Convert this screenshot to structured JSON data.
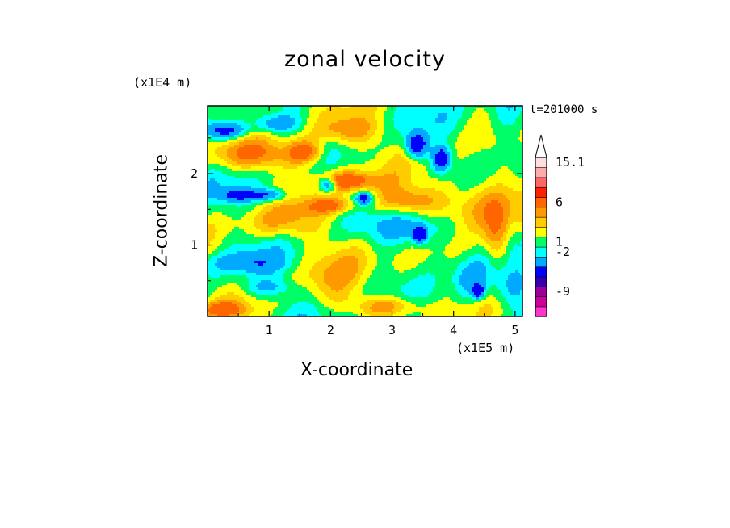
{
  "chart_data": {
    "type": "heatmap",
    "title": "zonal velocity",
    "xlabel": "X-coordinate",
    "ylabel": "Z-coordinate",
    "x_unit": "(x1E5 m)",
    "y_unit": "(x1E4 m)",
    "time_label": "t=201000 s",
    "x_ticks": [
      "1",
      "2",
      "3",
      "4",
      "5"
    ],
    "y_ticks": [
      "1",
      "2"
    ],
    "xlim": [
      0,
      5.12
    ],
    "ylim": [
      0,
      2.95
    ],
    "colorbar": {
      "labels": [
        "15.1",
        "6",
        "1",
        "-2",
        "-9"
      ],
      "levels": [
        {
          "color": "#ff33cc"
        },
        {
          "color": "#cc0099"
        },
        {
          "color": "#990099"
        },
        {
          "color": "#3300aa"
        },
        {
          "color": "#0000ff"
        },
        {
          "color": "#00aaff"
        },
        {
          "color": "#00ffff"
        },
        {
          "color": "#00ff66"
        },
        {
          "color": "#ffff00"
        },
        {
          "color": "#ffcc00"
        },
        {
          "color": "#ff9900"
        },
        {
          "color": "#ff6600"
        },
        {
          "color": "#ff2200"
        },
        {
          "color": "#ff6666"
        },
        {
          "color": "#ffaaaa"
        },
        {
          "color": "#ffdddd"
        }
      ]
    },
    "field_palette": [
      "#0000ff",
      "#00aaff",
      "#00ffff",
      "#00ff66",
      "#ffff00",
      "#ffcc00",
      "#ff9900",
      "#ff6600"
    ],
    "field_features": [
      {
        "x": 0.3,
        "z": 2.6,
        "v": -5.0,
        "sx": 0.25,
        "sz": 0.08
      },
      {
        "x": 1.1,
        "z": 2.7,
        "v": -3.5,
        "sx": 0.3,
        "sz": 0.1
      },
      {
        "x": 0.8,
        "z": 2.25,
        "v": 3.0,
        "sx": 0.6,
        "sz": 0.15
      },
      {
        "x": 2.2,
        "z": 2.6,
        "v": 3.5,
        "sx": 0.4,
        "sz": 0.15
      },
      {
        "x": 1.6,
        "z": 2.3,
        "v": 4.0,
        "sx": 0.2,
        "sz": 0.12
      },
      {
        "x": 3.4,
        "z": 2.4,
        "v": -6.0,
        "sx": 0.12,
        "sz": 0.12
      },
      {
        "x": 3.8,
        "z": 2.2,
        "v": -6.0,
        "sx": 0.1,
        "sz": 0.12
      },
      {
        "x": 1.95,
        "z": 1.85,
        "v": -5.0,
        "sx": 0.1,
        "sz": 0.07
      },
      {
        "x": 2.55,
        "z": 1.65,
        "v": -5.0,
        "sx": 0.1,
        "sz": 0.06
      },
      {
        "x": 0.5,
        "z": 1.7,
        "v": -4.0,
        "sx": 0.2,
        "sz": 0.06
      },
      {
        "x": 1.0,
        "z": 1.7,
        "v": -4.0,
        "sx": 0.2,
        "sz": 0.06
      },
      {
        "x": 2.25,
        "z": 1.9,
        "v": 4.5,
        "sx": 0.35,
        "sz": 0.1
      },
      {
        "x": 2.0,
        "z": 1.55,
        "v": 3.5,
        "sx": 0.3,
        "sz": 0.08
      },
      {
        "x": 3.2,
        "z": 1.6,
        "v": 3.5,
        "sx": 0.4,
        "sz": 0.15
      },
      {
        "x": 4.4,
        "z": 1.6,
        "v": 3.0,
        "sx": 0.5,
        "sz": 0.3
      },
      {
        "x": 1.2,
        "z": 1.3,
        "v": 2.0,
        "sx": 0.5,
        "sz": 0.15
      },
      {
        "x": 3.5,
        "z": 1.25,
        "v": -3.0,
        "sx": 0.5,
        "sz": 0.2
      },
      {
        "x": 3.45,
        "z": 1.15,
        "v": -6.0,
        "sx": 0.08,
        "sz": 0.08
      },
      {
        "x": 0.6,
        "z": 0.75,
        "v": -2.5,
        "sx": 0.4,
        "sz": 0.1
      },
      {
        "x": 1.0,
        "z": 0.4,
        "v": -2.0,
        "sx": 0.3,
        "sz": 0.08
      },
      {
        "x": 2.4,
        "z": 1.0,
        "v": 1.0,
        "sx": 0.3,
        "sz": 0.3
      },
      {
        "x": 2.0,
        "z": 0.5,
        "v": 1.2,
        "sx": 0.3,
        "sz": 0.3
      },
      {
        "x": 3.3,
        "z": 0.6,
        "v": 1.0,
        "sx": 0.3,
        "sz": 0.25
      },
      {
        "x": 4.3,
        "z": 0.5,
        "v": -3.0,
        "sx": 0.2,
        "sz": 0.2
      },
      {
        "x": 4.4,
        "z": 0.35,
        "v": -6.0,
        "sx": 0.06,
        "sz": 0.06
      },
      {
        "x": 4.9,
        "z": 0.4,
        "v": -2.5,
        "sx": 0.2,
        "sz": 0.2
      },
      {
        "x": 2.9,
        "z": 0.15,
        "v": 3.0,
        "sx": 0.4,
        "sz": 0.1
      },
      {
        "x": 0.2,
        "z": 0.1,
        "v": 3.0,
        "sx": 0.3,
        "sz": 0.08
      },
      {
        "x": 4.9,
        "z": 2.7,
        "v": -2.0,
        "sx": 0.2,
        "sz": 0.3
      },
      {
        "x": 4.7,
        "z": 1.1,
        "v": 3.5,
        "sx": 0.15,
        "sz": 0.3
      }
    ]
  }
}
